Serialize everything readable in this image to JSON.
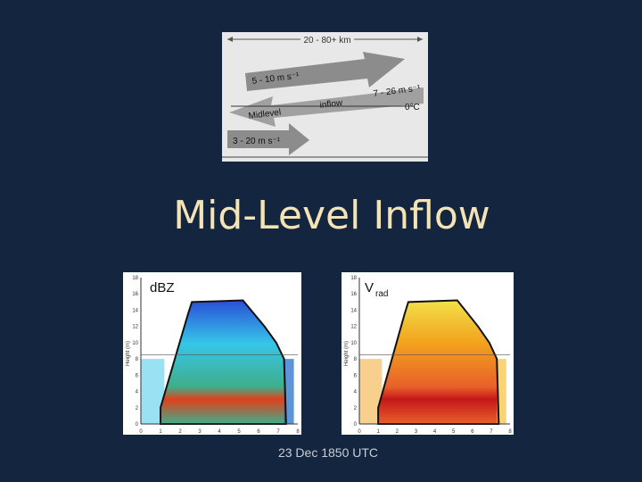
{
  "title": "Mid-Level Inflow",
  "diagram": {
    "width_label": "20 - 80+ km",
    "upper_arrow": "5 - 10 m s⁻¹",
    "inflow_speed": "7 - 26 m s⁻¹",
    "inflow_word1": "Midlevel",
    "inflow_word2": "inflow",
    "freezing_level": "0°C",
    "lower_arrow": "3 - 20 m s⁻¹"
  },
  "panels": [
    {
      "label": "dBZ",
      "axis_label": "Height (m)",
      "x_ticks": [
        "0",
        "1",
        "2",
        "3",
        "4",
        "5",
        "6",
        "7",
        "8"
      ],
      "y_ticks": [
        "0",
        "2",
        "4",
        "6",
        "8",
        "10",
        "12",
        "14",
        "16",
        "18"
      ]
    },
    {
      "label": "V",
      "label_sub": "rad",
      "axis_label": "Height (m)",
      "x_ticks": [
        "0",
        "1",
        "2",
        "3",
        "4",
        "5",
        "6",
        "7",
        "8"
      ],
      "y_ticks": [
        "0",
        "2",
        "4",
        "6",
        "8",
        "10",
        "12",
        "14",
        "16",
        "18"
      ]
    }
  ],
  "caption": "23 Dec 1850 UTC"
}
